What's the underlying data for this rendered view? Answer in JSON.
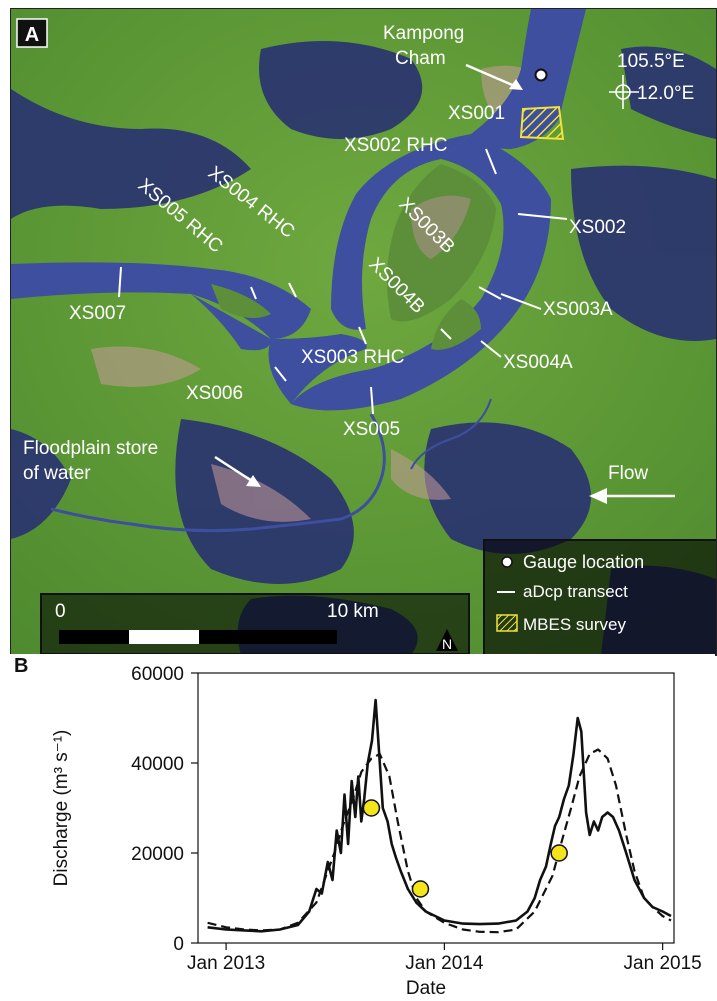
{
  "panel_a": {
    "letter": "A",
    "city": {
      "line1": "Kampong",
      "line2": "Cham"
    },
    "coords": {
      "lon": "105.5°E",
      "lat": "12.0°E"
    },
    "transects": {
      "xs001": "XS001",
      "xs002_rhc": "XS002 RHC",
      "xs002": "XS002",
      "xs003b": "XS003B",
      "xs004_rhc": "XS004 RHC",
      "xs005_rhc": "XS005 RHC",
      "xs004b": "XS004B",
      "xs003a": "XS003A",
      "xs007": "XS007",
      "xs003_rhc": "XS003 RHC",
      "xs004a": "XS004A",
      "xs006": "XS006",
      "xs005": "XS005"
    },
    "floodplain": {
      "line1": "Floodplain store",
      "line2": "of water"
    },
    "flow_label": "Flow",
    "scale": {
      "start": "0",
      "end": "10 km"
    },
    "north": "N",
    "legend": {
      "gauge": "Gauge location",
      "adcp": "aDcp transect",
      "mbes": "MBES survey"
    },
    "colors": {
      "river": "#3d4f9e",
      "floodplain_water": "#2a3470",
      "vegetation": "#5f9a36",
      "mbes_hatch": "#f2e23a"
    }
  },
  "panel_b": {
    "letter": "B",
    "chart_data": {
      "type": "line",
      "xlabel": "Date",
      "ylabel": "Discharge (m³ s⁻¹)",
      "ylim": [
        0,
        60000
      ],
      "xlim": [
        "2012-11-15",
        "2015-01-20"
      ],
      "yticks": [
        0,
        20000,
        40000,
        60000
      ],
      "ytick_labels": [
        "0",
        "20000",
        "40000",
        "60000"
      ],
      "xticks": [
        "2013-01-01",
        "2014-01-01",
        "2015-01-01"
      ],
      "xtick_labels": [
        "Jan 2013",
        "Jan 2014",
        "Jan 2015"
      ],
      "series": [
        {
          "style": "solid",
          "points": [
            [
              "2012-12-01",
              3500
            ],
            [
              "2013-01-01",
              3000
            ],
            [
              "2013-02-01",
              2800
            ],
            [
              "2013-03-01",
              2600
            ],
            [
              "2013-04-01",
              3000
            ],
            [
              "2013-05-01",
              4000
            ],
            [
              "2013-05-20",
              7000
            ],
            [
              "2013-06-01",
              12000
            ],
            [
              "2013-06-10",
              11000
            ],
            [
              "2013-06-20",
              18000
            ],
            [
              "2013-06-28",
              14000
            ],
            [
              "2013-07-05",
              25000
            ],
            [
              "2013-07-12",
              20000
            ],
            [
              "2013-07-18",
              33000
            ],
            [
              "2013-07-24",
              22000
            ],
            [
              "2013-07-30",
              36000
            ],
            [
              "2013-08-05",
              28000
            ],
            [
              "2013-08-10",
              37000
            ],
            [
              "2013-08-15",
              27000
            ],
            [
              "2013-08-20",
              32000
            ],
            [
              "2013-08-26",
              40000
            ],
            [
              "2013-09-02",
              45000
            ],
            [
              "2013-09-08",
              54000
            ],
            [
              "2013-09-14",
              42000
            ],
            [
              "2013-09-20",
              30000
            ],
            [
              "2013-09-28",
              27000
            ],
            [
              "2013-10-05",
              22000
            ],
            [
              "2013-10-12",
              19000
            ],
            [
              "2013-10-20",
              16000
            ],
            [
              "2013-11-01",
              12000
            ],
            [
              "2013-11-15",
              9000
            ],
            [
              "2013-12-01",
              7000
            ],
            [
              "2014-01-01",
              5000
            ],
            [
              "2014-02-01",
              4300
            ],
            [
              "2014-03-01",
              4200
            ],
            [
              "2014-04-01",
              4300
            ],
            [
              "2014-05-01",
              5000
            ],
            [
              "2014-05-20",
              7000
            ],
            [
              "2014-06-01",
              10000
            ],
            [
              "2014-06-10",
              14000
            ],
            [
              "2014-06-20",
              17000
            ],
            [
              "2014-06-28",
              22000
            ],
            [
              "2014-07-05",
              26000
            ],
            [
              "2014-07-12",
              28000
            ],
            [
              "2014-07-20",
              32000
            ],
            [
              "2014-07-28",
              35000
            ],
            [
              "2014-08-05",
              42000
            ],
            [
              "2014-08-12",
              50000
            ],
            [
              "2014-08-18",
              47000
            ],
            [
              "2014-08-22",
              38000
            ],
            [
              "2014-08-26",
              29000
            ],
            [
              "2014-09-01",
              24000
            ],
            [
              "2014-09-08",
              27000
            ],
            [
              "2014-09-15",
              25000
            ],
            [
              "2014-09-22",
              28000
            ],
            [
              "2014-10-01",
              29000
            ],
            [
              "2014-10-10",
              28000
            ],
            [
              "2014-10-20",
              25000
            ],
            [
              "2014-11-01",
              20000
            ],
            [
              "2014-11-15",
              14000
            ],
            [
              "2014-12-01",
              10000
            ],
            [
              "2014-12-15",
              8000
            ],
            [
              "2015-01-01",
              7000
            ],
            [
              "2015-01-15",
              6000
            ]
          ]
        },
        {
          "style": "dashed",
          "points": [
            [
              "2012-12-01",
              4500
            ],
            [
              "2013-01-01",
              3500
            ],
            [
              "2013-02-01",
              3000
            ],
            [
              "2013-03-01",
              2800
            ],
            [
              "2013-04-01",
              3000
            ],
            [
              "2013-05-01",
              4500
            ],
            [
              "2013-06-01",
              9000
            ],
            [
              "2013-07-01",
              20000
            ],
            [
              "2013-07-15",
              26000
            ],
            [
              "2013-08-01",
              32000
            ],
            [
              "2013-08-15",
              38000
            ],
            [
              "2013-09-01",
              41000
            ],
            [
              "2013-09-15",
              42000
            ],
            [
              "2013-10-01",
              37000
            ],
            [
              "2013-10-15",
              27000
            ],
            [
              "2013-11-01",
              16000
            ],
            [
              "2013-11-15",
              10000
            ],
            [
              "2013-12-01",
              7000
            ],
            [
              "2014-01-01",
              4500
            ],
            [
              "2014-02-01",
              3000
            ],
            [
              "2014-03-01",
              2500
            ],
            [
              "2014-04-01",
              2400
            ],
            [
              "2014-05-01",
              3000
            ],
            [
              "2014-06-01",
              7000
            ],
            [
              "2014-07-01",
              15000
            ],
            [
              "2014-07-15",
              22000
            ],
            [
              "2014-08-01",
              30000
            ],
            [
              "2014-08-15",
              37000
            ],
            [
              "2014-09-01",
              42000
            ],
            [
              "2014-09-15",
              43000
            ],
            [
              "2014-10-01",
              41000
            ],
            [
              "2014-10-15",
              35000
            ],
            [
              "2014-11-01",
              24000
            ],
            [
              "2014-11-15",
              16000
            ],
            [
              "2014-12-01",
              10000
            ],
            [
              "2014-12-15",
              8000
            ],
            [
              "2015-01-01",
              6000
            ],
            [
              "2015-01-15",
              5000
            ]
          ]
        }
      ],
      "survey_markers": [
        [
          "2013-09-01",
          30000
        ],
        [
          "2013-11-22",
          12000
        ],
        [
          "2014-07-12",
          20000
        ]
      ]
    }
  }
}
